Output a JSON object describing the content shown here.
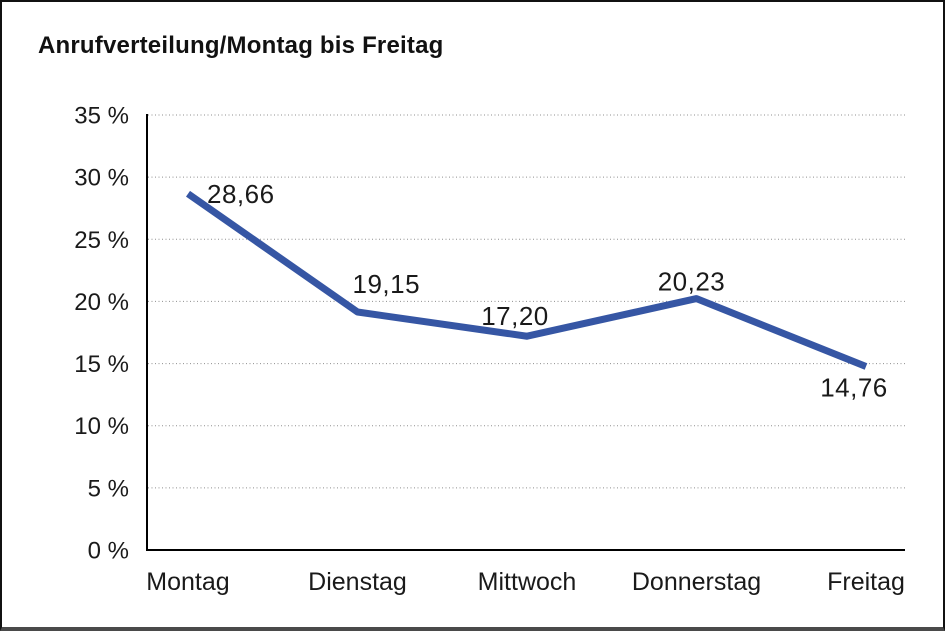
{
  "title": "Anrufverteilung/Montag bis Freitag",
  "chart_data": {
    "type": "line",
    "title": "Anrufverteilung/Montag bis Freitag",
    "categories": [
      "Montag",
      "Dienstag",
      "Mittwoch",
      "Donnerstag",
      "Freitag"
    ],
    "values": [
      28.66,
      19.15,
      17.2,
      20.23,
      14.76
    ],
    "value_labels": [
      "28,66",
      "19,15",
      "17,20",
      "20,23",
      "14,76"
    ],
    "series_name": "Anrufverteilung",
    "xlabel": "",
    "ylabel": "",
    "ylim": [
      0,
      35
    ],
    "y_step": 5,
    "y_tick_labels": [
      "0 %",
      "5 %",
      "10 %",
      "15 %",
      "20 %",
      "25 %",
      "30 %",
      "35 %"
    ],
    "grid": "horizontal-dotted",
    "legend": "none",
    "line_color": "#3656A4",
    "text_color": "#1a1a1a",
    "gridline_color": "#8f8f8f",
    "axis_color": "#000000"
  }
}
